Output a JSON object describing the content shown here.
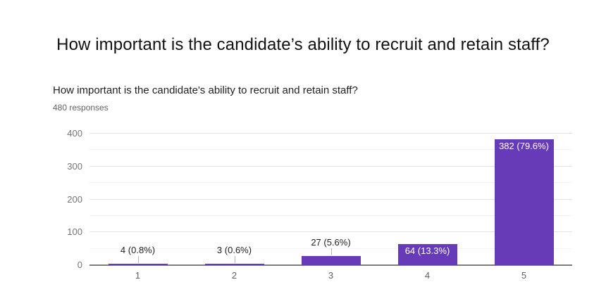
{
  "page": {
    "title": "How important is the candidate’s ability to recruit and retain staff?"
  },
  "chart_data": {
    "type": "bar",
    "title": "How important is the candidate's ability to recruit and retain staff?",
    "subtitle": "480 responses",
    "categories": [
      "1",
      "2",
      "3",
      "4",
      "5"
    ],
    "values": [
      4,
      3,
      27,
      64,
      382
    ],
    "value_labels": [
      "4 (0.8%)",
      "3 (0.6%)",
      "27 (5.6%)",
      "64 (13.3%)",
      "382 (79.6%)"
    ],
    "label_placement": [
      "above",
      "above",
      "above",
      "inside",
      "inside"
    ],
    "xlabel": "",
    "ylabel": "",
    "ylim": [
      0,
      400
    ],
    "yticks": [
      0,
      100,
      200,
      300,
      400
    ],
    "minor_grid_step": 50,
    "grid": true,
    "legend": false,
    "bar_color": "#673ab7",
    "axis_text_color": "#757575",
    "gridline_color": "#e3e3e3",
    "baseline_color": "#7d7d7d"
  }
}
